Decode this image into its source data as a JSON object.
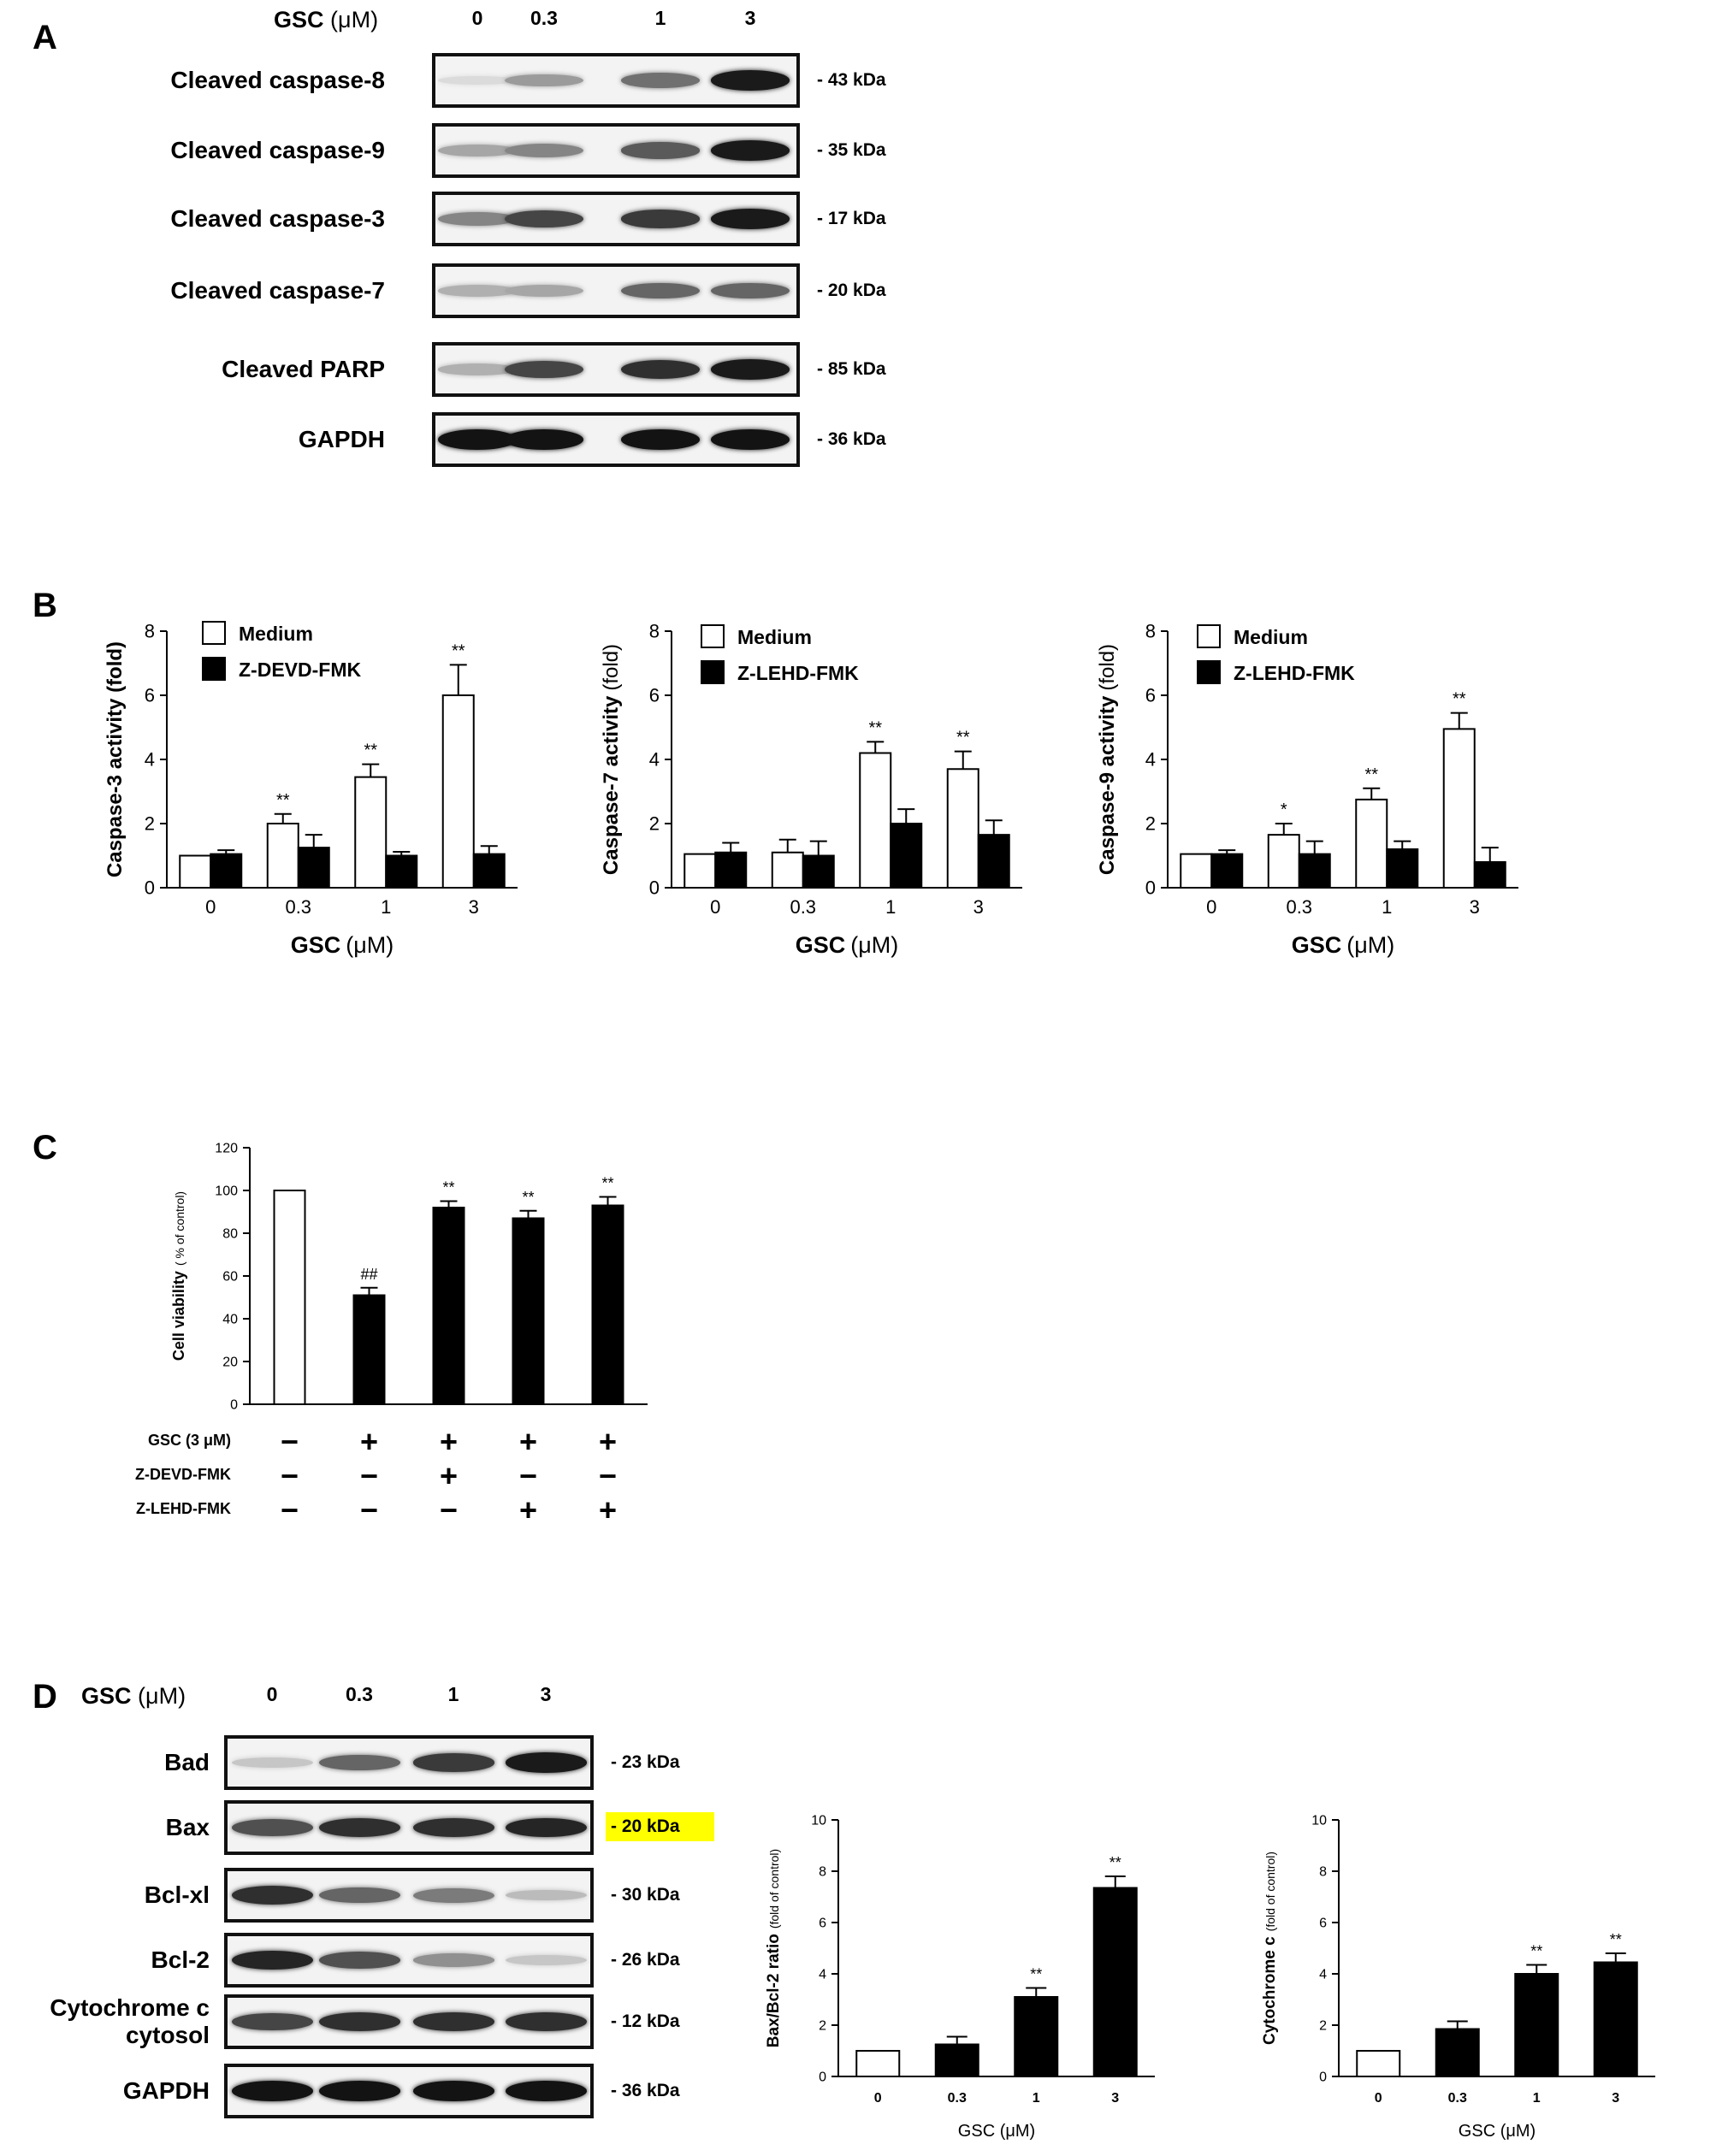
{
  "panels": {
    "A": "A",
    "B": "B",
    "C": "C",
    "D": "D"
  },
  "panelA": {
    "header_bold": "GSC",
    "header_unit": "(μM)",
    "lanes": [
      "0",
      "0.3",
      "1",
      "3"
    ],
    "blots": [
      {
        "label": "Cleaved caspase-8",
        "kda": "- 43 kDa",
        "intensity": [
          0.05,
          0.35,
          0.55,
          0.95
        ]
      },
      {
        "label": "Cleaved caspase-9",
        "kda": "- 35 kDa",
        "intensity": [
          0.3,
          0.45,
          0.65,
          0.95
        ]
      },
      {
        "label": "Cleaved caspase-3",
        "kda": "- 17 kDa",
        "intensity": [
          0.45,
          0.75,
          0.8,
          0.95
        ]
      },
      {
        "label": "Cleaved caspase-7",
        "kda": "- 20 kDa",
        "intensity": [
          0.25,
          0.3,
          0.6,
          0.6
        ]
      },
      {
        "label": "Cleaved PARP",
        "kda": "- 85 kDa",
        "intensity": [
          0.25,
          0.75,
          0.85,
          0.95
        ]
      },
      {
        "label": "GAPDH",
        "kda": "- 36 kDa",
        "intensity": [
          0.98,
          0.98,
          0.98,
          0.98
        ]
      }
    ]
  },
  "chart_data": [
    {
      "id": "B1",
      "type": "bar",
      "ylabel": "Caspase-3 activity (fold)",
      "xlabel_bold": "GSC",
      "xlabel_unit": "(μM)",
      "categories": [
        "0",
        "0.3",
        "1",
        "3"
      ],
      "ylim": [
        0,
        8
      ],
      "yticks": [
        "0",
        "2",
        "4",
        "6",
        "8"
      ],
      "legend_position": "top-left",
      "series": [
        {
          "name": "Medium",
          "color": "#ffffff",
          "values": [
            1.0,
            2.0,
            3.45,
            6.0
          ],
          "errors": [
            0,
            0.3,
            0.4,
            0.95
          ]
        },
        {
          "name": "Z-DEVD-FMK",
          "color": "#000000",
          "values": [
            1.05,
            1.25,
            1.0,
            1.05
          ],
          "errors": [
            0.12,
            0.4,
            0.12,
            0.25
          ]
        }
      ],
      "annotations": [
        "",
        "**",
        "**",
        "**"
      ]
    },
    {
      "id": "B2",
      "type": "bar",
      "ylabel_bold": "Caspase-7 activity",
      "ylabel_unit": "(fold)",
      "xlabel_bold": "GSC",
      "xlabel_unit": "(μM)",
      "categories": [
        "0",
        "0.3",
        "1",
        "3"
      ],
      "ylim": [
        0,
        8
      ],
      "yticks": [
        "0",
        "2",
        "4",
        "6",
        "8"
      ],
      "legend_position": "top-left",
      "series": [
        {
          "name": "Medium",
          "color": "#ffffff",
          "values": [
            1.05,
            1.1,
            4.2,
            3.7
          ],
          "errors": [
            0,
            0.4,
            0.35,
            0.55
          ]
        },
        {
          "name": "Z-LEHD-FMK",
          "color": "#000000",
          "values": [
            1.1,
            1.0,
            2.0,
            1.65
          ],
          "errors": [
            0.3,
            0.45,
            0.45,
            0.45
          ]
        }
      ],
      "annotations": [
        "",
        "",
        "**",
        "**"
      ]
    },
    {
      "id": "B3",
      "type": "bar",
      "ylabel_bold": "Caspase-9 activity",
      "ylabel_unit": "(fold)",
      "xlabel_bold": "GSC",
      "xlabel_unit": "(μM)",
      "categories": [
        "0",
        "0.3",
        "1",
        "3"
      ],
      "ylim": [
        0,
        8
      ],
      "yticks": [
        "0",
        "2",
        "4",
        "6",
        "8"
      ],
      "legend_position": "top-left",
      "series": [
        {
          "name": "Medium",
          "color": "#ffffff",
          "values": [
            1.05,
            1.65,
            2.75,
            4.95
          ],
          "errors": [
            0,
            0.35,
            0.35,
            0.5
          ]
        },
        {
          "name": "Z-LEHD-FMK",
          "color": "#000000",
          "values": [
            1.05,
            1.05,
            1.2,
            0.8
          ],
          "errors": [
            0.12,
            0.4,
            0.25,
            0.45
          ]
        }
      ],
      "annotations": [
        "",
        "*",
        "**",
        "**"
      ]
    },
    {
      "id": "C",
      "type": "bar",
      "ylabel_bold": "Cell viability",
      "ylabel_unit": "( % of control)",
      "categories": [
        "1",
        "2",
        "3",
        "4",
        "5"
      ],
      "ylim": [
        0,
        120
      ],
      "yticks": [
        "0",
        "20",
        "40",
        "60",
        "80",
        "100",
        "120"
      ],
      "series": [
        {
          "name": "",
          "values": [
            100,
            51,
            92,
            87,
            93
          ],
          "errors": [
            0,
            3.5,
            3,
            3.5,
            4
          ],
          "colors": [
            "#ffffff",
            "#000000",
            "#000000",
            "#000000",
            "#000000"
          ]
        }
      ],
      "annotations": [
        "",
        "##",
        "**",
        "**",
        "**"
      ],
      "treatment_rows": [
        {
          "label": "GSC (3 μM)",
          "signs": [
            "−",
            "+",
            "+",
            "+",
            "+"
          ]
        },
        {
          "label": "Z-DEVD-FMK",
          "signs": [
            "−",
            "−",
            "+",
            "−",
            "−"
          ]
        },
        {
          "label": "Z-LEHD-FMK",
          "signs": [
            "−",
            "−",
            "−",
            "+",
            "+"
          ]
        }
      ]
    },
    {
      "id": "D1",
      "type": "bar",
      "ylabel_bold": "Bax/Bcl-2 ratio",
      "ylabel_unit": "(fold of control)",
      "xlabel": "GSC (μM)",
      "categories": [
        "0",
        "0.3",
        "1",
        "3"
      ],
      "ylim": [
        0,
        10
      ],
      "yticks": [
        "0",
        "2",
        "4",
        "6",
        "8",
        "10"
      ],
      "series": [
        {
          "name": "",
          "values": [
            1.0,
            1.25,
            3.1,
            7.35
          ],
          "errors": [
            0,
            0.3,
            0.35,
            0.45
          ],
          "colors": [
            "#ffffff",
            "#000000",
            "#000000",
            "#000000"
          ]
        }
      ],
      "annotations": [
        "",
        "",
        "**",
        "**"
      ]
    },
    {
      "id": "D2",
      "type": "bar",
      "ylabel_bold": "Cytochrome c",
      "ylabel_unit": "(fold of control)",
      "xlabel": "GSC (μM)",
      "categories": [
        "0",
        "0.3",
        "1",
        "3"
      ],
      "ylim": [
        0,
        10
      ],
      "yticks": [
        "0",
        "2",
        "4",
        "6",
        "8",
        "10"
      ],
      "series": [
        {
          "name": "",
          "values": [
            1.0,
            1.85,
            4.0,
            4.45
          ],
          "errors": [
            0,
            0.3,
            0.35,
            0.35
          ],
          "colors": [
            "#ffffff",
            "#000000",
            "#000000",
            "#000000"
          ]
        }
      ],
      "annotations": [
        "",
        "",
        "**",
        "**"
      ]
    }
  ],
  "panelD": {
    "header_bold": "GSC",
    "header_unit": "(μM)",
    "lanes": [
      "0",
      "0.3",
      "1",
      "3"
    ],
    "blots": [
      {
        "label": "Bad",
        "kda": "- 23 kDa",
        "intensity": [
          0.15,
          0.6,
          0.8,
          0.95
        ]
      },
      {
        "label": "Bax",
        "kda": "- 20 kDa",
        "intensity": [
          0.7,
          0.85,
          0.85,
          0.9
        ],
        "highlight": "#ffff00"
      },
      {
        "label": "Bcl-xl",
        "kda": "- 30 kDa",
        "intensity": [
          0.85,
          0.6,
          0.5,
          0.2
        ]
      },
      {
        "label": "Bcl-2",
        "kda": "- 26 kDa",
        "intensity": [
          0.9,
          0.7,
          0.4,
          0.15
        ]
      },
      {
        "label": "Cytochrome c\ncytosol",
        "kda": "- 12 kDa",
        "intensity": [
          0.75,
          0.85,
          0.85,
          0.85
        ]
      },
      {
        "label": "GAPDH",
        "kda": "- 36 kDa",
        "intensity": [
          0.98,
          0.98,
          0.98,
          0.98
        ]
      }
    ]
  }
}
